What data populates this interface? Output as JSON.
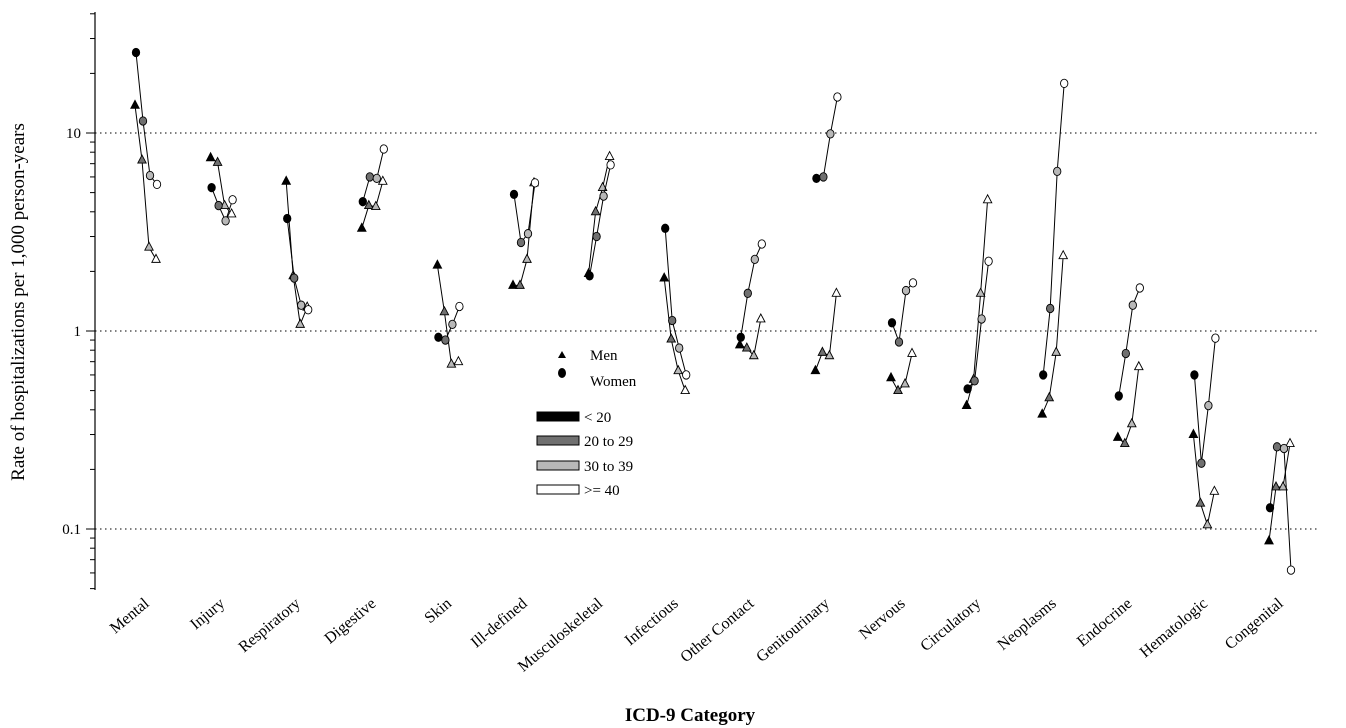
{
  "chart_data": {
    "type": "scatter",
    "y_scale": "log",
    "ylim": [
      0.05,
      40
    ],
    "ylabel": "Rate of hospitalizations per 1,000 person-years",
    "xlabel": "ICD-9 Category",
    "y_ticks": [
      {
        "value": 0.1,
        "label": "0.1"
      },
      {
        "value": 1,
        "label": "1"
      },
      {
        "value": 10,
        "label": "10"
      }
    ],
    "gridlines": [
      0.1,
      1,
      10
    ],
    "categories": [
      "Mental",
      "Injury",
      "Respiratory",
      "Digestive",
      "Skin",
      "Ill-defined",
      "Musculoskeletal",
      "Infectious",
      "Other Contact",
      "Genitourinary",
      "Nervous",
      "Circulatory",
      "Neoplasms",
      "Endocrine",
      "Hematologic",
      "Congenital"
    ],
    "age_groups": [
      "< 20",
      "20 to 29",
      "30 to 39",
      ">= 40"
    ],
    "series": [
      {
        "name": "Men",
        "marker": "triangle",
        "values": [
          [
            13.8,
            7.3,
            2.65,
            2.3
          ],
          [
            7.5,
            7.1,
            4.3,
            3.9
          ],
          [
            5.7,
            1.9,
            1.08,
            1.32
          ],
          [
            3.3,
            4.3,
            4.25,
            5.7
          ],
          [
            2.15,
            1.25,
            0.68,
            0.7
          ],
          [
            1.7,
            1.7,
            2.3,
            5.6
          ],
          [
            1.95,
            4.0,
            5.3,
            7.6
          ],
          [
            1.85,
            0.91,
            0.63,
            0.5
          ],
          [
            0.85,
            0.82,
            0.75,
            1.15
          ],
          [
            0.63,
            0.78,
            0.75,
            1.55
          ],
          [
            0.58,
            0.5,
            0.54,
            0.77
          ],
          [
            0.42,
            0.57,
            1.55,
            4.6
          ],
          [
            0.38,
            0.46,
            0.78,
            2.4
          ],
          [
            0.29,
            0.27,
            0.34,
            0.66
          ],
          [
            0.3,
            0.135,
            0.105,
            0.155
          ],
          [
            0.087,
            0.163,
            0.163,
            0.27
          ]
        ]
      },
      {
        "name": "Women",
        "marker": "circle",
        "values": [
          [
            25.5,
            11.5,
            6.1,
            5.5
          ],
          [
            5.3,
            4.3,
            3.6,
            4.6
          ],
          [
            3.7,
            1.85,
            1.35,
            1.28
          ],
          [
            4.5,
            6.0,
            5.9,
            8.3
          ],
          [
            0.93,
            0.9,
            1.08,
            1.33
          ],
          [
            4.9,
            2.8,
            3.1,
            5.6
          ],
          [
            1.9,
            3.0,
            4.8,
            6.9
          ],
          [
            3.3,
            1.13,
            0.82,
            0.6
          ],
          [
            0.93,
            1.55,
            2.3,
            2.75
          ],
          [
            5.9,
            6.0,
            9.9,
            15.2
          ],
          [
            1.1,
            0.88,
            1.6,
            1.75
          ],
          [
            0.51,
            0.56,
            1.15,
            2.25
          ],
          [
            0.6,
            1.3,
            6.4,
            17.8
          ],
          [
            0.47,
            0.77,
            1.35,
            1.65
          ],
          [
            0.6,
            0.215,
            0.42,
            0.92
          ],
          [
            0.128,
            0.26,
            0.255,
            0.062
          ]
        ]
      }
    ],
    "legend": {
      "markers": [
        {
          "label": "Men",
          "symbol": "triangle"
        },
        {
          "label": "Women",
          "symbol": "circle"
        }
      ],
      "ages": [
        {
          "label": "< 20",
          "color": "#000000"
        },
        {
          "label": "20 to 29",
          "color": "#707070"
        },
        {
          "label": "30 to 39",
          "color": "#b8b8b8"
        },
        {
          "label": ">= 40",
          "color": "#ffffff"
        }
      ],
      "placement": "center"
    },
    "age_colors": [
      "#000000",
      "#707070",
      "#b8b8b8",
      "#ffffff"
    ]
  }
}
